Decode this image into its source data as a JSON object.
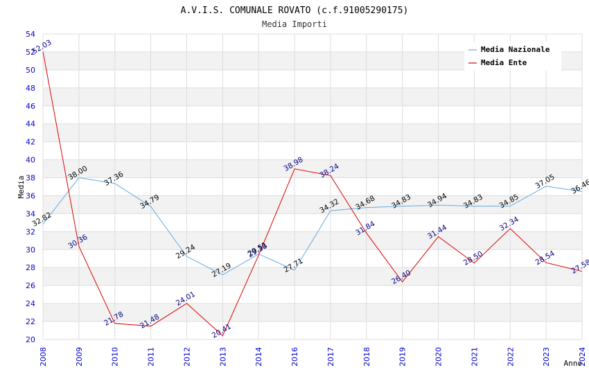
{
  "chart_data": {
    "type": "line",
    "title": "A.V.I.S. COMUNALE ROVATO (c.f.91005290175)",
    "subtitle": "Media Importi",
    "xlabel": "Anno",
    "ylabel": "Media",
    "ylim": [
      20,
      54
    ],
    "ytick_step": 2,
    "grid": true,
    "legend_position": "top-right",
    "categories": [
      "2008",
      "2009",
      "2010",
      "2011",
      "2012",
      "2013",
      "2014",
      "2016",
      "2017",
      "2018",
      "2019",
      "2020",
      "2021",
      "2022",
      "2023",
      "2024"
    ],
    "series": [
      {
        "name": "Media Nazionale",
        "color": "#66aadd",
        "values": [
          32.82,
          38.0,
          37.36,
          34.79,
          29.24,
          27.19,
          29.51,
          27.71,
          34.32,
          34.68,
          34.83,
          34.94,
          34.83,
          34.85,
          37.05,
          36.46
        ],
        "labels": [
          "32.82",
          "38.00",
          "37.36",
          "34.79",
          "29.24",
          "27.19",
          "29.51",
          "27.71",
          "34.32",
          "34.68",
          "34.83",
          "34.94",
          "34.83",
          "34.85",
          "37.05",
          "36.46"
        ]
      },
      {
        "name": "Media Ente",
        "color": "#dd0000",
        "values": [
          52.03,
          30.36,
          21.78,
          21.48,
          24.01,
          20.41,
          29.38,
          38.98,
          38.24,
          31.84,
          26.4,
          31.44,
          28.5,
          32.34,
          28.54,
          27.58
        ],
        "labels": [
          "52.03",
          "30.36",
          "21.78",
          "21.48",
          "24.01",
          "20.41",
          "29.38",
          "38.98",
          "38.24",
          "31.84",
          "26.40",
          "31.44",
          "28.50",
          "32.34",
          "28.54",
          "27.58"
        ]
      }
    ]
  }
}
